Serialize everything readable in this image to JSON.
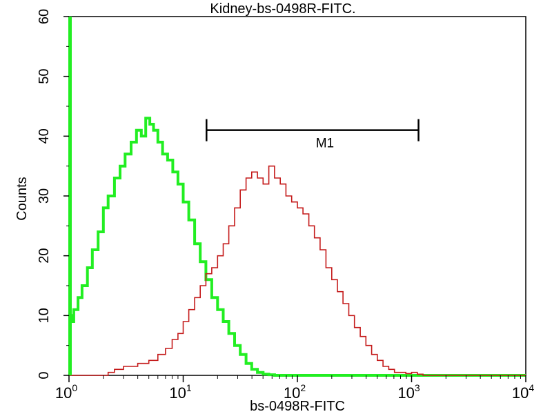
{
  "chart_data": {
    "type": "line",
    "title": "Kidney-bs-0498R-FITC.",
    "xlabel": "bs-0498R-FITC",
    "ylabel": "Counts",
    "x_scale": "log",
    "xlim": [
      1,
      10000
    ],
    "ylim": [
      0,
      60
    ],
    "grid": false,
    "x_ticks": [
      {
        "value": 1,
        "base": "10",
        "exp": "0"
      },
      {
        "value": 10,
        "base": "10",
        "exp": "1"
      },
      {
        "value": 100,
        "base": "10",
        "exp": "2"
      },
      {
        "value": 1000,
        "base": "10",
        "exp": "3"
      },
      {
        "value": 10000,
        "base": "10",
        "exp": "4"
      }
    ],
    "y_ticks": [
      0,
      10,
      20,
      30,
      40,
      50,
      60
    ],
    "colors": {
      "control": "#22ee22",
      "sample": "#c41a1a",
      "frame": "#000000"
    },
    "series": [
      {
        "color": "#22ee22",
        "x": [
          1.0,
          1.05,
          1.1,
          1.2,
          1.3,
          1.45,
          1.6,
          1.8,
          2.0,
          2.2,
          2.5,
          2.8,
          3.1,
          3.5,
          3.9,
          4.3,
          4.7,
          5.1,
          5.5,
          6.0,
          6.6,
          7.3,
          8.1,
          9.0,
          10.0,
          11.2,
          12.6,
          14.1,
          15.8,
          17.8,
          20.0,
          22.4,
          25.1,
          28.2,
          31.6,
          35.5,
          39.8,
          44.7,
          50.1,
          56.2,
          63.1,
          70.8,
          79.4,
          100,
          200,
          500,
          1000,
          5000,
          10000
        ],
        "y": [
          10,
          9,
          11,
          13,
          15,
          18,
          21,
          24,
          28,
          30,
          33,
          35,
          37,
          39,
          41,
          40,
          43,
          42,
          41,
          39,
          37,
          36,
          34,
          32,
          29,
          26,
          22,
          19,
          16,
          13,
          11,
          9,
          7,
          5,
          3.5,
          2,
          1,
          0.5,
          0.2,
          0.1,
          0,
          0,
          0,
          0,
          0,
          0,
          0,
          0,
          0
        ]
      },
      {
        "color": "#c41a1a",
        "x": [
          1.0,
          1.5,
          2.0,
          2.2,
          2.5,
          3.0,
          3.5,
          4.0,
          5.0,
          6.0,
          7.0,
          8.0,
          9.0,
          10.0,
          11.2,
          12.6,
          14.1,
          15.8,
          17.8,
          20.0,
          22.4,
          25.1,
          28.2,
          31.6,
          35.5,
          39.8,
          44.7,
          50.1,
          56.2,
          63.1,
          70.8,
          79.4,
          89.1,
          100,
          112,
          126,
          141,
          158,
          178,
          200,
          224,
          251,
          282,
          316,
          355,
          398,
          447,
          501,
          562,
          631,
          708,
          794,
          891,
          1000,
          1122,
          1259,
          2000,
          5000,
          10000
        ],
        "y": [
          0,
          0,
          0,
          0.5,
          1,
          1.5,
          1.5,
          2,
          2.5,
          3.5,
          4.5,
          6,
          7,
          9,
          11,
          13,
          15,
          17,
          18,
          20,
          22,
          25,
          28,
          31,
          33,
          34,
          33,
          32,
          35,
          33,
          32,
          30,
          29,
          28,
          27,
          25,
          23,
          21,
          18,
          16,
          14,
          12,
          10,
          8,
          6.5,
          5,
          3.5,
          2.5,
          1.5,
          1,
          0.5,
          0.5,
          0.3,
          0.5,
          0.2,
          0,
          0,
          0,
          0
        ]
      }
    ],
    "markers": [
      {
        "label": "M1",
        "x_start": 16,
        "x_end": 1150,
        "y": 41
      }
    ],
    "annotations": [
      {
        "x": 1.0,
        "y": 60,
        "to_y": 0,
        "color": "#22ee22",
        "type": "vertical-edge"
      }
    ]
  }
}
